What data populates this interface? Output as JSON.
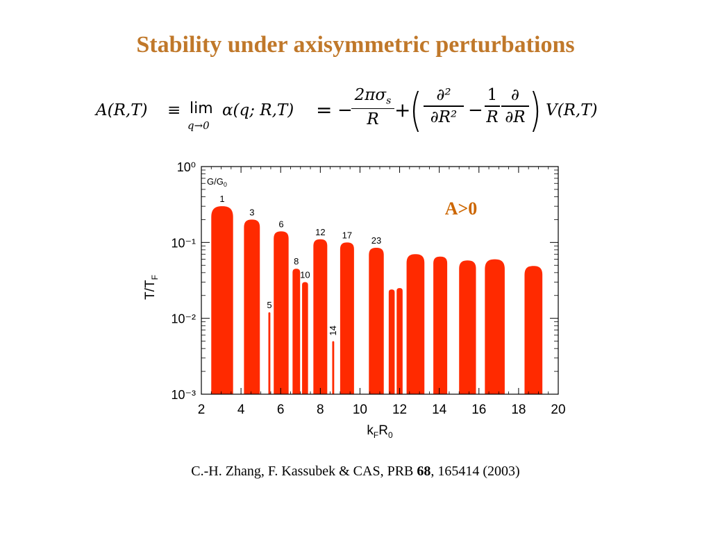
{
  "slide": {
    "title": "Stability under axisymmetric perturbations",
    "equation": {
      "lhs": "A(R,T)",
      "equiv": "≡",
      "lim": "lim",
      "lim_sub": "q→0",
      "alpha": "α(q; R,T)",
      "eq": "=",
      "minus": "−",
      "frac1_num": "2πσ",
      "frac1_num_sub": "s",
      "frac1_den": "R",
      "plus": "+",
      "frac2_num": "∂²",
      "frac2_den": "∂R²",
      "minus2": "−",
      "frac3_num": "1",
      "frac3_den": "R",
      "frac4_num": "∂",
      "frac4_den": "∂R",
      "rhs": "V(R,T)"
    },
    "citation_pre": "C.-H. Zhang, F. Kassubek & CAS, PRB ",
    "citation_vol": "68",
    "citation_post": ", 165414 (2003)"
  },
  "chart_data": {
    "type": "area",
    "xlabel": "kFR0",
    "ylabel": "T/TF",
    "ylim": [
      0.001,
      1
    ],
    "xlim": [
      2,
      20
    ],
    "yscale": "log",
    "xticks": [
      "2",
      "4",
      "6",
      "8",
      "10",
      "12",
      "14",
      "16",
      "18",
      "20"
    ],
    "yticks": [
      "10⁰",
      "10⁻¹",
      "10⁻²",
      "10⁻³"
    ],
    "corner_label": "G/G0",
    "annotation": "A>0",
    "fill_color": "#ff2a00",
    "annotation_color": "#cc6600",
    "lobes": [
      {
        "label": "1",
        "x0": 2.5,
        "x1": 3.6,
        "peak": 0.3
      },
      {
        "label": "3",
        "x0": 4.15,
        "x1": 4.95,
        "peak": 0.2
      },
      {
        "label": "6",
        "x0": 5.65,
        "x1": 6.4,
        "peak": 0.14
      },
      {
        "label": "5",
        "x0": 5.38,
        "x1": 5.48,
        "peak": 0.012
      },
      {
        "label": "8",
        "x0": 6.6,
        "x1": 6.98,
        "peak": 0.045
      },
      {
        "label": "10",
        "x0": 7.08,
        "x1": 7.38,
        "peak": 0.03
      },
      {
        "label": "12",
        "x0": 7.65,
        "x1": 8.35,
        "peak": 0.11
      },
      {
        "label": "14",
        "x0": 8.6,
        "x1": 8.7,
        "peak": 0.005
      },
      {
        "label": "17",
        "x0": 9.0,
        "x1": 9.7,
        "peak": 0.1
      },
      {
        "label": "23",
        "x0": 10.45,
        "x1": 11.2,
        "peak": 0.085
      },
      {
        "label": "",
        "x0": 11.45,
        "x1": 11.75,
        "peak": 0.024
      },
      {
        "label": "",
        "x0": 11.85,
        "x1": 12.15,
        "peak": 0.025
      },
      {
        "label": "",
        "x0": 12.35,
        "x1": 13.25,
        "peak": 0.07
      },
      {
        "label": "",
        "x0": 13.7,
        "x1": 14.4,
        "peak": 0.065
      },
      {
        "label": "",
        "x0": 15.0,
        "x1": 15.85,
        "peak": 0.058
      },
      {
        "label": "",
        "x0": 16.3,
        "x1": 17.3,
        "peak": 0.06
      },
      {
        "label": "",
        "x0": 18.3,
        "x1": 19.2,
        "peak": 0.049
      }
    ]
  }
}
